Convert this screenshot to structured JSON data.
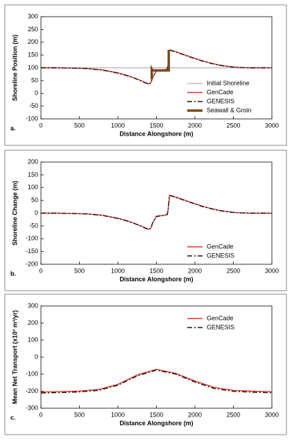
{
  "chart_data": [
    {
      "type": "line",
      "panel_label": "a.",
      "xlabel": "Distance Alongshore (m)",
      "ylabel": "Shoreline Position (m)",
      "x": [
        0,
        200,
        400,
        600,
        800,
        1000,
        1100,
        1200,
        1300,
        1350,
        1400,
        1430,
        1450,
        1500,
        1550,
        1600,
        1640,
        1650,
        1670,
        1700,
        1800,
        1900,
        2000,
        2100,
        2200,
        2300,
        2400,
        2500,
        2600,
        2700,
        2800,
        2900,
        3000
      ],
      "xlim": [
        0,
        3000
      ],
      "xticks": [
        0,
        500,
        1000,
        1500,
        2000,
        2500,
        3000
      ],
      "ylim": [
        -100,
        300
      ],
      "yticks": [
        -100,
        -50,
        0,
        50,
        100,
        150,
        200,
        250,
        300
      ],
      "legend": "lower right",
      "series": [
        {
          "name": "Initial Shoreline",
          "color": "#bbbbbb",
          "dash": "solid",
          "weight": "normal",
          "x": [
            0,
            3000
          ],
          "values": [
            100,
            100
          ]
        },
        {
          "name": "GenCade",
          "color": "#e8302a",
          "dash": "solid",
          "weight": "normal",
          "values": [
            100,
            100,
            99,
            97,
            92,
            80,
            72,
            62,
            50,
            43,
            37,
            42,
            62,
            88,
            90,
            92,
            95,
            110,
            170,
            168,
            158,
            147,
            137,
            127,
            119,
            112,
            107,
            103,
            101,
            100,
            100,
            100,
            100
          ]
        },
        {
          "name": "GENESIS",
          "color": "#111111",
          "dash": "dashdot",
          "weight": "normal",
          "values": [
            100,
            100,
            99,
            97,
            91,
            79,
            71,
            61,
            49,
            42,
            36,
            41,
            61,
            87,
            89,
            91,
            94,
            108,
            169,
            167,
            157,
            146,
            136,
            126,
            118,
            111,
            106,
            103,
            101,
            100,
            100,
            100,
            100
          ]
        },
        {
          "name": "Seawall & Groin",
          "color": "#7a4a1e",
          "dash": "solid",
          "weight": "thick",
          "x": [
            1440,
            1440,
            1450,
            1650,
            1660,
            1660
          ],
          "values": [
            55,
            95,
            90,
            90,
            90,
            170
          ]
        }
      ]
    },
    {
      "type": "line",
      "panel_label": "b.",
      "xlabel": "Distance Alongshore (m)",
      "ylabel": "Shoreline Change (m)",
      "x": [
        0,
        200,
        400,
        600,
        800,
        1000,
        1100,
        1200,
        1300,
        1350,
        1400,
        1430,
        1450,
        1500,
        1550,
        1600,
        1640,
        1650,
        1670,
        1700,
        1800,
        1900,
        2000,
        2100,
        2200,
        2300,
        2400,
        2500,
        2600,
        2700,
        2800,
        2900,
        3000
      ],
      "xlim": [
        0,
        3000
      ],
      "xticks": [
        0,
        500,
        1000,
        1500,
        2000,
        2500,
        3000
      ],
      "ylim": [
        -200,
        200
      ],
      "yticks": [
        -200,
        -150,
        -100,
        -50,
        0,
        50,
        100,
        150,
        200
      ],
      "legend": "lower right",
      "series": [
        {
          "name": "GenCade",
          "color": "#e8302a",
          "dash": "solid",
          "weight": "normal",
          "values": [
            0,
            0,
            -1,
            -3,
            -8,
            -20,
            -28,
            -38,
            -50,
            -57,
            -63,
            -58,
            -38,
            -12,
            -10,
            -8,
            -5,
            10,
            70,
            68,
            58,
            47,
            37,
            27,
            19,
            12,
            7,
            3,
            1,
            0,
            0,
            0,
            0
          ]
        },
        {
          "name": "GENESIS",
          "color": "#111111",
          "dash": "dashdot",
          "weight": "normal",
          "values": [
            0,
            0,
            -1,
            -3,
            -9,
            -21,
            -29,
            -39,
            -51,
            -58,
            -64,
            -59,
            -39,
            -13,
            -11,
            -9,
            -6,
            8,
            69,
            67,
            57,
            46,
            36,
            26,
            18,
            11,
            6,
            3,
            1,
            0,
            0,
            0,
            0
          ]
        }
      ]
    },
    {
      "type": "line",
      "panel_label": "c.",
      "xlabel": "Distance Alongshore (m)",
      "ylabel": "Mean Net Transport (x10³ m³/yr)",
      "x": [
        0,
        250,
        500,
        750,
        1000,
        1250,
        1500,
        1750,
        2000,
        2250,
        2500,
        2750,
        3000
      ],
      "xlim": [
        0,
        3000
      ],
      "xticks": [
        0,
        500,
        1000,
        1500,
        2000,
        2500,
        3000
      ],
      "ylim": [
        -300,
        300
      ],
      "yticks": [
        -300,
        -200,
        -100,
        0,
        100,
        200,
        300
      ],
      "legend": "upper right",
      "series": [
        {
          "name": "GenCade",
          "color": "#e8302a",
          "dash": "solid",
          "weight": "normal",
          "values": [
            -205,
            -203,
            -199,
            -190,
            -160,
            -105,
            -72,
            -95,
            -140,
            -178,
            -195,
            -200,
            -203
          ]
        },
        {
          "name": "GENESIS",
          "color": "#111111",
          "dash": "dashdot",
          "weight": "normal",
          "values": [
            -210,
            -208,
            -204,
            -195,
            -165,
            -110,
            -76,
            -100,
            -146,
            -184,
            -201,
            -206,
            -209
          ]
        }
      ]
    }
  ]
}
